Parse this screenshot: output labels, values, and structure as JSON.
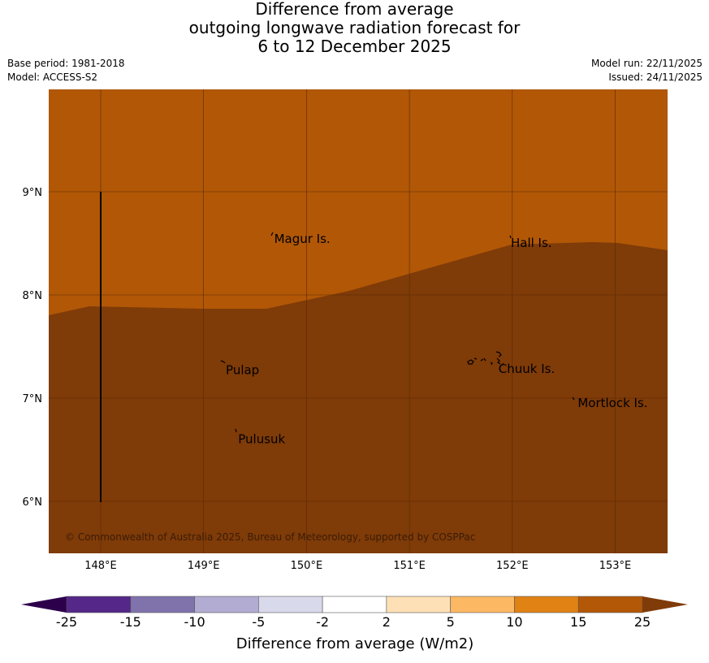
{
  "title": {
    "line1": "Difference from average",
    "line2": "outgoing longwave radiation forecast for",
    "line3": "6 to 12 December 2025"
  },
  "meta": {
    "base_period": "Base period: 1981-2018",
    "model": "Model: ACCESS-S2",
    "model_run": "Model run: 22/11/2025",
    "issued": "Issued: 24/11/2025"
  },
  "map": {
    "lon_ticks": [
      {
        "value": 148,
        "label": "148°E"
      },
      {
        "value": 149,
        "label": "149°E"
      },
      {
        "value": 150,
        "label": "150°E"
      },
      {
        "value": 151,
        "label": "151°E"
      },
      {
        "value": 152,
        "label": "152°E"
      },
      {
        "value": 153,
        "label": "153°E"
      }
    ],
    "lat_ticks": [
      {
        "value": 9,
        "label": "9°N"
      },
      {
        "value": 8,
        "label": "8°N"
      },
      {
        "value": 7,
        "label": "7°N"
      },
      {
        "value": 6,
        "label": "6°N"
      }
    ],
    "places": [
      {
        "name": "Magur Is.",
        "lon": 149.67,
        "lat": 8.55
      },
      {
        "name": "Hall Is.",
        "lon": 151.97,
        "lat": 8.51
      },
      {
        "name": "Pulap",
        "lon": 149.2,
        "lat": 7.28
      },
      {
        "name": "Chuuk Is.",
        "lon": 151.85,
        "lat": 7.29
      },
      {
        "name": "Mortlock Is.",
        "lon": 152.62,
        "lat": 6.96
      },
      {
        "name": "Pulusuk",
        "lon": 149.32,
        "lat": 6.61
      }
    ],
    "copyright": "© Commonwealth of Australia 2025, Bureau of Meteorology, supported by COSPPac",
    "colors": {
      "upper_fill": "#b15706",
      "lower_fill": "#7f3b08",
      "grid": "#5a2a05"
    }
  },
  "legend": {
    "title": "Difference from average (W/m2)",
    "bounds": [
      "-25",
      "-15",
      "-10",
      "-5",
      "-2",
      "2",
      "5",
      "10",
      "15",
      "25"
    ],
    "colors": [
      "#542788",
      "#8073ac",
      "#b2abd2",
      "#d8daeb",
      "#ffffff",
      "#fee0b6",
      "#fdb863",
      "#e08214",
      "#b35806"
    ],
    "under_color": "#2d004b",
    "over_color": "#7f3b08"
  }
}
